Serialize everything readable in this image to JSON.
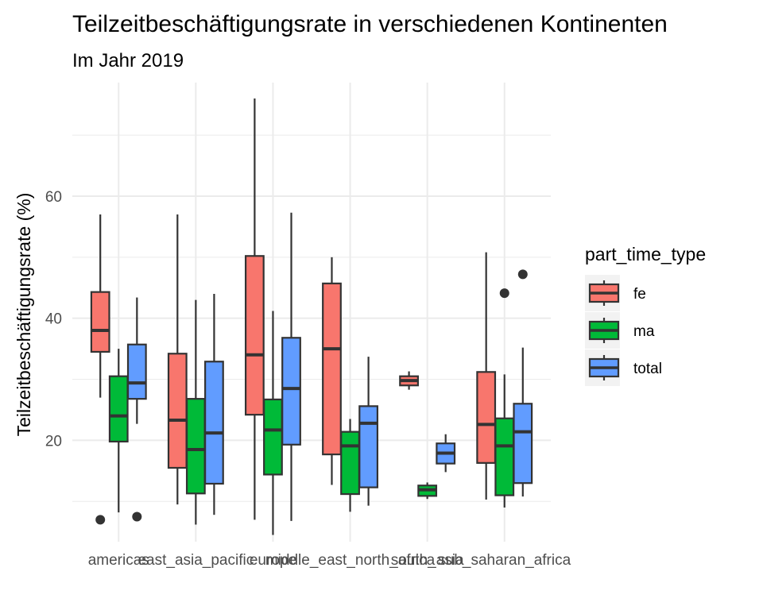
{
  "chart_data": {
    "type": "boxplot",
    "title": "Teilzeitbeschäftigungsrate in verschiedenen Kontinenten",
    "subtitle": "Im Jahr 2019",
    "xlabel": "",
    "ylabel": "Teilzeitbeschäftigungsrate (%)",
    "ylim": [
      3.4,
      78.6
    ],
    "yticks": [
      20,
      40,
      60
    ],
    "grid": true,
    "legend_title": "part_time_type",
    "legend_position": "right",
    "categories": [
      "americas",
      "east_asia_pacific",
      "europe",
      "middle_east_north_africa",
      "south_asia",
      "sub_saharan_africa"
    ],
    "series": [
      {
        "name": "fe",
        "color": "#F8766D",
        "boxes": [
          {
            "category": "americas",
            "min": 27.0,
            "q1": 34.5,
            "median": 38.0,
            "q3": 44.3,
            "max": 57.0,
            "outliers": []
          },
          {
            "category": "east_asia_pacific",
            "min": 9.5,
            "q1": 15.5,
            "median": 23.3,
            "q3": 34.2,
            "max": 57.0,
            "outliers": []
          },
          {
            "category": "europe",
            "min": 7.0,
            "q1": 24.2,
            "median": 34.0,
            "q3": 50.2,
            "max": 76.0,
            "outliers": []
          },
          {
            "category": "middle_east_north_africa",
            "min": 12.7,
            "q1": 17.7,
            "median": 35.0,
            "q3": 45.7,
            "max": 50.0,
            "outliers": []
          },
          {
            "category": "south_asia",
            "min": 28.3,
            "q1": 29.0,
            "median": 29.8,
            "q3": 30.5,
            "max": 31.3,
            "outliers": []
          },
          {
            "category": "sub_saharan_africa",
            "min": 10.3,
            "q1": 16.3,
            "median": 22.6,
            "q3": 31.2,
            "max": 50.8,
            "outliers": []
          }
        ]
      },
      {
        "name": "ma",
        "color": "#00BA38",
        "boxes": [
          {
            "category": "americas",
            "min": 8.2,
            "q1": 19.8,
            "median": 24.0,
            "q3": 30.5,
            "max": 35.0,
            "outliers": []
          },
          {
            "category": "east_asia_pacific",
            "min": 6.2,
            "q1": 11.3,
            "median": 18.5,
            "q3": 26.8,
            "max": 43.0,
            "outliers": []
          },
          {
            "category": "europe",
            "min": 4.5,
            "q1": 14.4,
            "median": 21.7,
            "q3": 26.7,
            "max": 41.2,
            "outliers": []
          },
          {
            "category": "middle_east_north_africa",
            "min": 8.3,
            "q1": 11.2,
            "median": 19.1,
            "q3": 21.4,
            "max": 23.5,
            "outliers": []
          },
          {
            "category": "south_asia",
            "min": 10.4,
            "q1": 10.9,
            "median": 11.9,
            "q3": 12.6,
            "max": 13.1,
            "outliers": []
          },
          {
            "category": "sub_saharan_africa",
            "min": 9.0,
            "q1": 11.0,
            "median": 19.1,
            "q3": 23.6,
            "max": 30.8,
            "outliers": [
              44.1
            ]
          }
        ]
      },
      {
        "name": "total",
        "color": "#619CFF",
        "boxes": [
          {
            "category": "americas",
            "min": 22.7,
            "q1": 26.8,
            "median": 29.4,
            "q3": 35.7,
            "max": 43.4,
            "outliers": [
              7.5
            ]
          },
          {
            "category": "east_asia_pacific",
            "min": 7.8,
            "q1": 12.9,
            "median": 21.2,
            "q3": 32.9,
            "max": 44.0,
            "outliers": []
          },
          {
            "category": "europe",
            "min": 6.8,
            "q1": 19.3,
            "median": 28.5,
            "q3": 36.8,
            "max": 57.3,
            "outliers": []
          },
          {
            "category": "middle_east_north_africa",
            "min": 9.3,
            "q1": 12.3,
            "median": 22.8,
            "q3": 25.6,
            "max": 33.7,
            "outliers": []
          },
          {
            "category": "south_asia",
            "min": 14.8,
            "q1": 16.2,
            "median": 17.9,
            "q3": 19.5,
            "max": 21.0,
            "outliers": []
          },
          {
            "category": "sub_saharan_africa",
            "min": 10.8,
            "q1": 13.0,
            "median": 21.4,
            "q3": 26.0,
            "max": 35.2,
            "outliers": [
              47.2
            ]
          }
        ]
      }
    ]
  },
  "americas_fe_outlier_note": null
}
